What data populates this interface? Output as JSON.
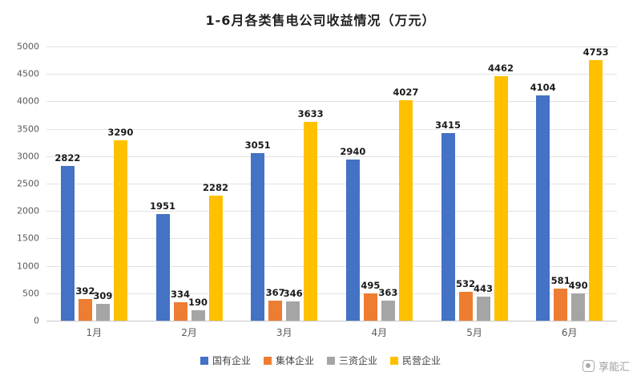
{
  "header": {
    "title": "1-6月各类售电公司收益情况（万元）"
  },
  "watermark": {
    "label": "享能汇"
  },
  "chart_data": {
    "type": "bar",
    "title": "1-6月各类售电公司收益情况（万元）",
    "categories": [
      "1月",
      "2月",
      "3月",
      "4月",
      "5月",
      "6月"
    ],
    "series": [
      {
        "name": "国有企业",
        "color": "#4472C4",
        "values": [
          2822,
          1951,
          3051,
          2940,
          3415,
          4104
        ]
      },
      {
        "name": "集体企业",
        "color": "#ED7D31",
        "values": [
          392,
          334,
          367,
          495,
          532,
          581
        ]
      },
      {
        "name": "三资企业",
        "color": "#A5A5A5",
        "values": [
          309,
          190,
          346,
          363,
          443,
          490
        ]
      },
      {
        "name": "民营企业",
        "color": "#FFC000",
        "values": [
          3290,
          2282,
          3633,
          4027,
          4462,
          4753
        ]
      }
    ],
    "xlabel": "",
    "ylabel": "",
    "ylim": [
      0,
      5000
    ],
    "ytick_step": 500,
    "grid": true,
    "legend_position": "bottom"
  }
}
